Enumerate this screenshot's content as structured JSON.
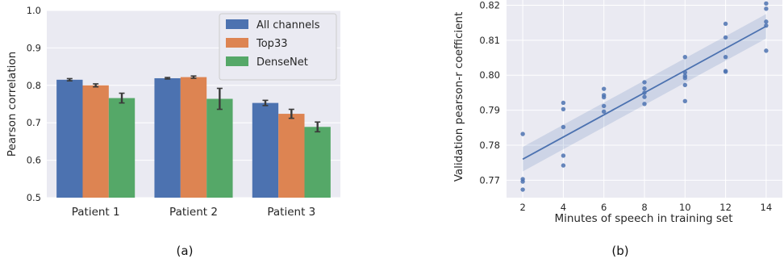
{
  "chart_data": [
    {
      "type": "bar",
      "panel_label": "(a)",
      "categories": [
        "Patient 1",
        "Patient 2",
        "Patient 3"
      ],
      "series": [
        {
          "name": "All channels",
          "color": "#4c72b0",
          "values": [
            0.815,
            0.819,
            0.753
          ],
          "err": [
            0.003,
            0.002,
            0.007
          ]
        },
        {
          "name": "Top33",
          "color": "#dd8452",
          "values": [
            0.8,
            0.822,
            0.724
          ],
          "err": [
            0.004,
            0.003,
            0.012
          ]
        },
        {
          "name": "DenseNet",
          "color": "#55a868",
          "values": [
            0.766,
            0.764,
            0.689
          ],
          "err": [
            0.013,
            0.028,
            0.013
          ]
        }
      ],
      "ylabel": "Pearson correlation",
      "ylim": [
        0.5,
        1.0
      ],
      "yticks": [
        "0.5",
        "0.6",
        "0.7",
        "0.8",
        "0.9",
        "1.0"
      ],
      "grid": true,
      "legend": "top-right"
    },
    {
      "type": "scatter",
      "panel_label": "(b)",
      "xlabel": "Minutes of speech in training set",
      "ylabel": "Validation pearson-r coefficient",
      "xticks": [
        "2",
        "4",
        "6",
        "8",
        "10",
        "12",
        "14"
      ],
      "yticks": [
        "0.77",
        "0.78",
        "0.79",
        "0.80",
        "0.81",
        "0.82"
      ],
      "xlim": [
        1.2,
        14.8
      ],
      "ylim": [
        0.765,
        0.8215
      ],
      "color": "#4c72b0",
      "points": [
        [
          2,
          0.7832
        ],
        [
          2,
          0.7703
        ],
        [
          2,
          0.7696
        ],
        [
          2,
          0.7673
        ],
        [
          4,
          0.7921
        ],
        [
          4,
          0.7903
        ],
        [
          4,
          0.7852
        ],
        [
          4,
          0.777
        ],
        [
          4,
          0.7742
        ],
        [
          6,
          0.7961
        ],
        [
          6,
          0.7943
        ],
        [
          6,
          0.7937
        ],
        [
          6,
          0.7912
        ],
        [
          6,
          0.7896
        ],
        [
          8,
          0.798
        ],
        [
          8,
          0.7962
        ],
        [
          8,
          0.795
        ],
        [
          8,
          0.7938
        ],
        [
          8,
          0.7918
        ],
        [
          10,
          0.8052
        ],
        [
          10,
          0.8008
        ],
        [
          10,
          0.7998
        ],
        [
          10,
          0.7992
        ],
        [
          10,
          0.7972
        ],
        [
          10,
          0.7926
        ],
        [
          12,
          0.8147
        ],
        [
          12,
          0.8108
        ],
        [
          12,
          0.8052
        ],
        [
          12,
          0.8012
        ],
        [
          12,
          0.801
        ],
        [
          14,
          0.8205
        ],
        [
          14,
          0.819
        ],
        [
          14,
          0.8153
        ],
        [
          14,
          0.8142
        ],
        [
          14,
          0.807
        ]
      ],
      "regression": {
        "x": [
          2,
          14
        ],
        "y": [
          0.776,
          0.814
        ]
      },
      "ci_band": {
        "x": [
          2,
          14
        ],
        "upper": [
          0.7795,
          0.8175
        ],
        "lower": [
          0.7725,
          0.8105
        ]
      },
      "grid": true
    }
  ]
}
